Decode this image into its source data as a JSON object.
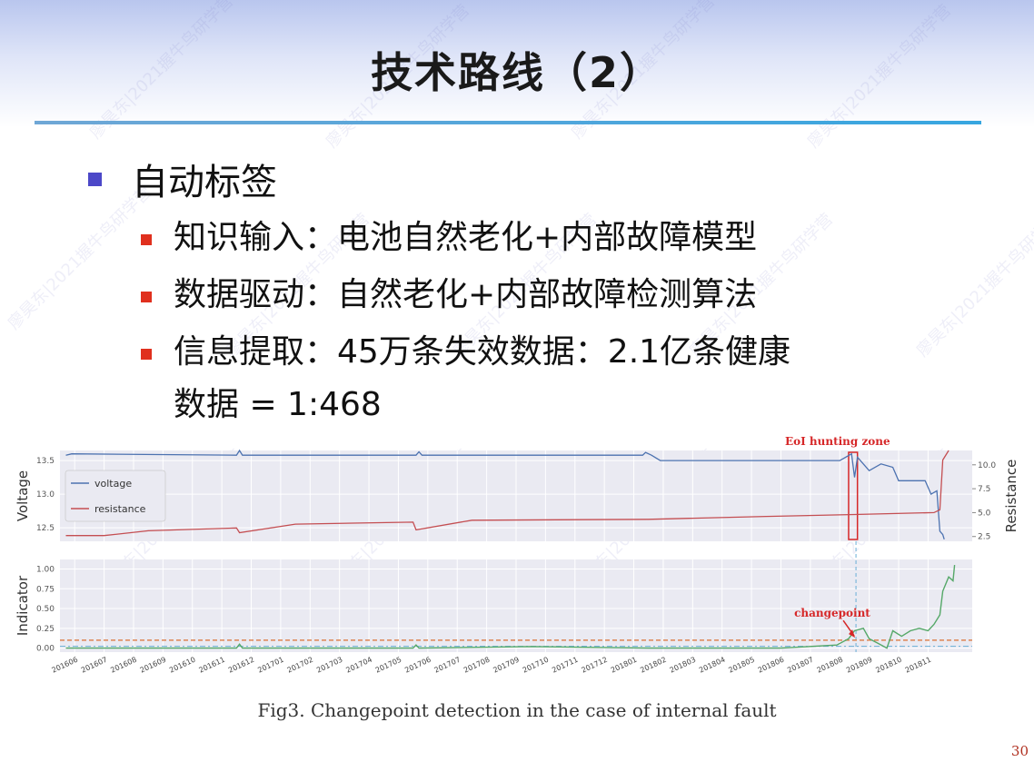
{
  "slide": {
    "title": "技术路线（2）",
    "bullet_main": "自动标签",
    "sub_bullets": [
      "知识输入：电池自然老化+内部故障模型",
      "数据驱动：自然老化+内部故障检测算法",
      "信息提取：45万条失效数据：2.1亿条健康"
    ],
    "sub_bullet_continuation": "数据 = 1:468",
    "caption": "Fig3.  Changepoint detection in the case of internal fault",
    "page_number": "30",
    "watermark": "廖昊东|2021握牛鸟研学营"
  },
  "colors": {
    "voltage": "#4c72b0",
    "resistance": "#c44e52",
    "indicator": "#55a868",
    "threshold": "#dd8452",
    "annotation": "#d62728",
    "panel_bg": "#eaeaf2",
    "bullet_blue": "#4c48c8",
    "bullet_red": "#e0301e"
  },
  "chart_data": [
    {
      "type": "line",
      "title": "",
      "annotation": "EoI hunting zone",
      "ylabel": "Voltage",
      "ylabel_right": "Resistance",
      "ylim": [
        12.3,
        13.65
      ],
      "ylim_right": [
        2.0,
        11.5
      ],
      "yticks": [
        "13.5",
        "13.0",
        "12.5"
      ],
      "yticks_values": [
        13.5,
        13.0,
        12.5
      ],
      "yticks_right": [
        "10.0",
        "7.5",
        "5.0",
        "2.5"
      ],
      "yticks_right_values": [
        10.0,
        7.5,
        5.0,
        2.5
      ],
      "xlim": [
        0,
        31
      ],
      "legend": [
        "voltage",
        "resistance"
      ],
      "hunting_zone_x": [
        26.8,
        27.1
      ],
      "series": [
        {
          "name": "voltage",
          "axis": "left",
          "points": [
            [
              0.2,
              13.58
            ],
            [
              0.4,
              13.6
            ],
            [
              6.0,
              13.58
            ],
            [
              6.1,
              13.65
            ],
            [
              6.2,
              13.58
            ],
            [
              12.1,
              13.58
            ],
            [
              12.2,
              13.63
            ],
            [
              12.3,
              13.58
            ],
            [
              19.8,
              13.58
            ],
            [
              19.9,
              13.62
            ],
            [
              20.1,
              13.58
            ],
            [
              20.4,
              13.5
            ],
            [
              26.5,
              13.5
            ],
            [
              26.7,
              13.55
            ],
            [
              26.9,
              13.6
            ],
            [
              27.0,
              13.25
            ],
            [
              27.1,
              13.55
            ],
            [
              27.5,
              13.35
            ],
            [
              27.9,
              13.45
            ],
            [
              28.3,
              13.4
            ],
            [
              28.5,
              13.2
            ],
            [
              29.0,
              13.2
            ],
            [
              29.4,
              13.2
            ],
            [
              29.6,
              13.0
            ],
            [
              29.8,
              13.05
            ],
            [
              29.9,
              12.45
            ],
            [
              30.0,
              12.4
            ],
            [
              30.05,
              12.33
            ]
          ]
        },
        {
          "name": "resistance",
          "axis": "right",
          "points": [
            [
              0.2,
              2.6
            ],
            [
              1.5,
              2.6
            ],
            [
              3.0,
              3.1
            ],
            [
              6.0,
              3.4
            ],
            [
              6.1,
              2.9
            ],
            [
              8.0,
              3.8
            ],
            [
              12.0,
              4.0
            ],
            [
              12.1,
              3.2
            ],
            [
              14.0,
              4.2
            ],
            [
              20.0,
              4.3
            ],
            [
              24.0,
              4.6
            ],
            [
              27.0,
              4.8
            ],
            [
              29.7,
              5.0
            ],
            [
              29.9,
              5.3
            ],
            [
              30.0,
              10.5
            ],
            [
              30.2,
              11.5
            ]
          ]
        }
      ]
    },
    {
      "type": "line",
      "title": "",
      "annotation": "changepoint",
      "ylabel": "Indicator",
      "ylim": [
        -0.05,
        1.12
      ],
      "yticks": [
        "1.00",
        "0.75",
        "0.50",
        "0.25",
        "0.00"
      ],
      "yticks_values": [
        1.0,
        0.75,
        0.5,
        0.25,
        0.0
      ],
      "threshold": 0.1,
      "changepoint_x": 27.05,
      "xlim": [
        0,
        31
      ],
      "categories": [
        "201606",
        "201607",
        "201608",
        "201609",
        "201610",
        "201611",
        "201612",
        "201701",
        "201702",
        "201703",
        "201704",
        "201705",
        "201706",
        "201707",
        "201708",
        "201709",
        "201710",
        "201711",
        "201712",
        "201801",
        "201802",
        "201803",
        "201804",
        "201805",
        "201806",
        "201807",
        "201808",
        "201809",
        "201810",
        "201811"
      ],
      "series": [
        {
          "name": "indicator",
          "points": [
            [
              0.2,
              0.0
            ],
            [
              6.0,
              0.0
            ],
            [
              6.1,
              0.05
            ],
            [
              6.2,
              0.0
            ],
            [
              12.0,
              0.0
            ],
            [
              12.1,
              0.04
            ],
            [
              12.2,
              0.0
            ],
            [
              16.0,
              0.02
            ],
            [
              20.0,
              0.0
            ],
            [
              22.0,
              0.0
            ],
            [
              24.5,
              0.0
            ],
            [
              26.4,
              0.04
            ],
            [
              26.8,
              0.12
            ],
            [
              27.0,
              0.22
            ],
            [
              27.3,
              0.25
            ],
            [
              27.5,
              0.12
            ],
            [
              27.8,
              0.06
            ],
            [
              28.1,
              0.0
            ],
            [
              28.3,
              0.22
            ],
            [
              28.6,
              0.15
            ],
            [
              28.9,
              0.22
            ],
            [
              29.2,
              0.25
            ],
            [
              29.5,
              0.22
            ],
            [
              29.7,
              0.3
            ],
            [
              29.9,
              0.42
            ],
            [
              30.0,
              0.72
            ],
            [
              30.2,
              0.9
            ],
            [
              30.35,
              0.85
            ],
            [
              30.4,
              1.05
            ]
          ]
        }
      ]
    }
  ]
}
